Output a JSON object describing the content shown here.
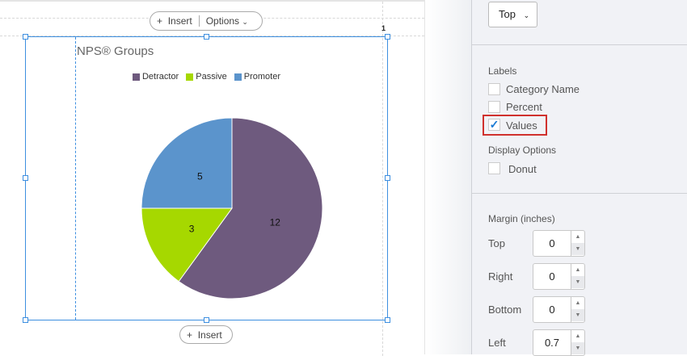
{
  "toolbar": {
    "insert_label": "Insert",
    "options_label": "Options",
    "page_number": "1",
    "bottom_insert_label": "Insert"
  },
  "chart_data": {
    "type": "pie",
    "title": "NPS®  Groups",
    "categories": [
      "Detractor",
      "Passive",
      "Promoter"
    ],
    "values": [
      12,
      3,
      5
    ],
    "colors": [
      "#6e5a7e",
      "#a6d800",
      "#5b94cc"
    ],
    "legend_position": "top",
    "show_values": true,
    "donut": false
  },
  "panel": {
    "legend_position_value": "Top",
    "labels_heading": "Labels",
    "labels": [
      {
        "label": "Category Name",
        "checked": false
      },
      {
        "label": "Percent",
        "checked": false
      },
      {
        "label": "Values",
        "checked": true
      }
    ],
    "display_heading": "Display Options",
    "donut_label": "Donut",
    "margin_heading": "Margin (inches)",
    "margins": [
      {
        "label": "Top",
        "value": "0"
      },
      {
        "label": "Right",
        "value": "0"
      },
      {
        "label": "Bottom",
        "value": "0"
      },
      {
        "label": "Left",
        "value": "0.7"
      }
    ]
  },
  "colors": {
    "selection": "#3d8fe0",
    "highlight": "#d0312d",
    "check": "#1a7ad4"
  }
}
